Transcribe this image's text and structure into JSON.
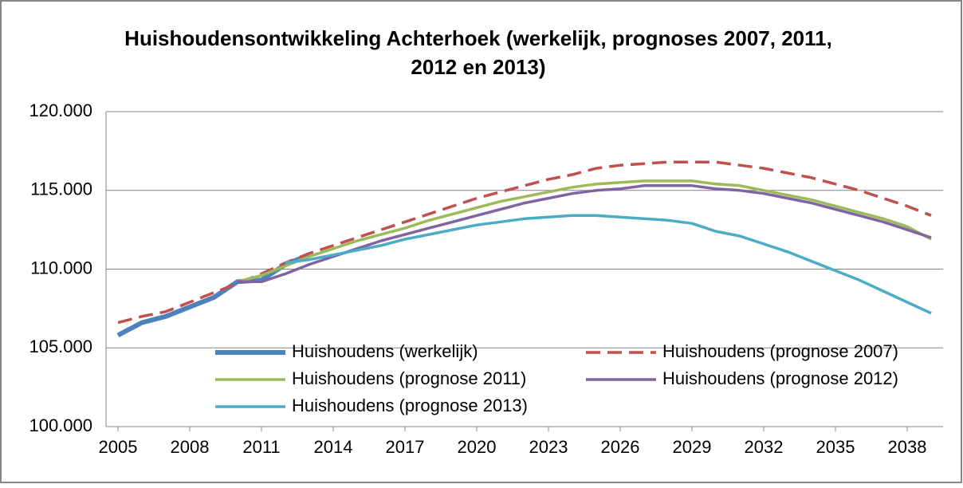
{
  "chart_data": {
    "type": "line",
    "title": [
      "Huishoudensontwikkeling Achterhoek (werkelijk, prognoses 2007, 2011,",
      "2012 en 2013)"
    ],
    "x": [
      2005,
      2006,
      2007,
      2008,
      2009,
      2010,
      2011,
      2012,
      2013,
      2014,
      2015,
      2016,
      2017,
      2018,
      2019,
      2020,
      2021,
      2022,
      2023,
      2024,
      2025,
      2026,
      2027,
      2028,
      2029,
      2030,
      2031,
      2032,
      2033,
      2034,
      2035,
      2036,
      2037,
      2038,
      2039
    ],
    "xlim": [
      2004.5,
      2039.5
    ],
    "xticks": [
      2005,
      2008,
      2011,
      2014,
      2017,
      2020,
      2023,
      2026,
      2029,
      2032,
      2035,
      2038
    ],
    "ylim": [
      100000,
      120000
    ],
    "yticks": [
      {
        "value": 100000,
        "label": "100.000"
      },
      {
        "value": 105000,
        "label": "105.000"
      },
      {
        "value": 110000,
        "label": "110.000"
      },
      {
        "value": 115000,
        "label": "115.000"
      },
      {
        "value": 120000,
        "label": "120.000"
      }
    ],
    "grid": true,
    "series": [
      {
        "name": "Huishoudens (werkelijk)",
        "color": "#4f81bd",
        "line_width": 6,
        "dashed": false,
        "values": [
          105800,
          106600,
          107000,
          107600,
          108200,
          109200,
          109300,
          110300,
          110900,
          null,
          null,
          null,
          null,
          null,
          null,
          null,
          null,
          null,
          null,
          null,
          null,
          null,
          null,
          null,
          null,
          null,
          null,
          null,
          null,
          null,
          null,
          null,
          null,
          null,
          null
        ]
      },
      {
        "name": "Huishoudens (prognose 2007)",
        "color": "#c0504d",
        "line_width": 3.5,
        "dashed": true,
        "values": [
          106600,
          107000,
          107300,
          107900,
          108500,
          109100,
          109700,
          110400,
          111000,
          111500,
          112000,
          112500,
          113000,
          113500,
          114000,
          114500,
          114900,
          115300,
          115700,
          116000,
          116400,
          116600,
          116700,
          116800,
          116800,
          116800,
          116600,
          116400,
          116100,
          115800,
          115400,
          115000,
          114500,
          114000,
          113400
        ]
      },
      {
        "name": "Huishoudens (prognose 2011)",
        "color": "#9bbb59",
        "line_width": 3.5,
        "dashed": false,
        "values": [
          null,
          null,
          null,
          null,
          null,
          109200,
          109600,
          110200,
          110800,
          111300,
          111800,
          112200,
          112600,
          113100,
          113500,
          113900,
          114300,
          114600,
          114900,
          115200,
          115400,
          115500,
          115600,
          115600,
          115600,
          115400,
          115300,
          115000,
          114700,
          114400,
          114000,
          113600,
          113200,
          112700,
          111900
        ]
      },
      {
        "name": "Huishoudens (prognose 2012)",
        "color": "#8064a2",
        "line_width": 3.5,
        "dashed": false,
        "values": [
          null,
          null,
          null,
          null,
          null,
          109200,
          109200,
          109700,
          110300,
          110800,
          111300,
          111800,
          112200,
          112600,
          113000,
          113400,
          113800,
          114200,
          114500,
          114800,
          115000,
          115100,
          115300,
          115300,
          115300,
          115100,
          115000,
          114800,
          114500,
          114200,
          113800,
          113400,
          113000,
          112500,
          112000
        ]
      },
      {
        "name": "Huishoudens (prognose 2013)",
        "color": "#4bacc6",
        "line_width": 3.5,
        "dashed": false,
        "values": [
          null,
          null,
          null,
          null,
          null,
          null,
          null,
          110400,
          110600,
          110900,
          111200,
          111500,
          111900,
          112200,
          112500,
          112800,
          113000,
          113200,
          113300,
          113400,
          113400,
          113300,
          113200,
          113100,
          112900,
          112400,
          112100,
          111600,
          111100,
          110500,
          109900,
          109300,
          108600,
          107900,
          107200
        ]
      }
    ]
  }
}
